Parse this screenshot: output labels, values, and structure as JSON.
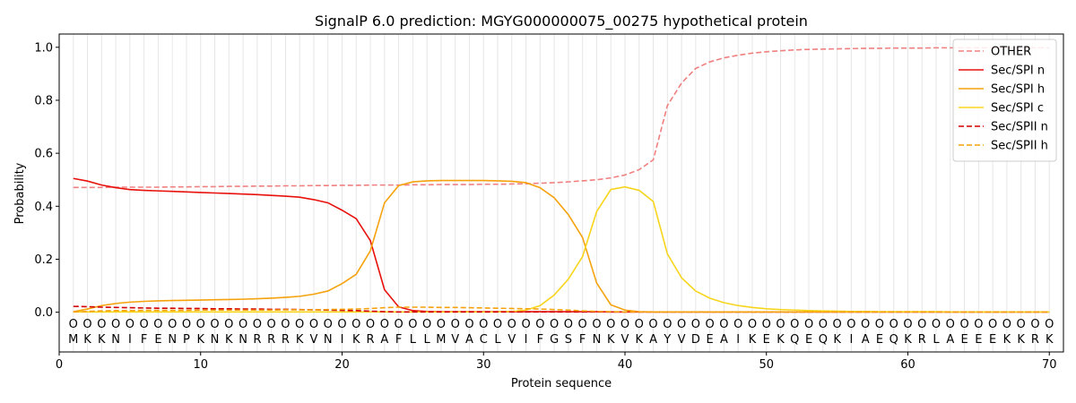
{
  "chart_data": {
    "type": "line",
    "title": "SignalP 6.0 prediction: MGYG000000075_00275 hypothetical protein",
    "xlabel": "Protein sequence",
    "ylabel": "Probability",
    "xlim": [
      0,
      71
    ],
    "ylim": [
      -0.15,
      1.05
    ],
    "xticks": [
      0,
      10,
      20,
      30,
      40,
      50,
      60,
      70
    ],
    "yticks": [
      0.0,
      0.2,
      0.4,
      0.6,
      0.8,
      1.0
    ],
    "grid": "vertical lines at each residue",
    "legend_position": "top-right",
    "x": [
      1,
      2,
      3,
      4,
      5,
      6,
      7,
      8,
      9,
      10,
      11,
      12,
      13,
      14,
      15,
      16,
      17,
      18,
      19,
      20,
      21,
      22,
      23,
      24,
      25,
      26,
      27,
      28,
      29,
      30,
      31,
      32,
      33,
      34,
      35,
      36,
      37,
      38,
      39,
      40,
      41,
      42,
      43,
      44,
      45,
      46,
      47,
      48,
      49,
      50,
      51,
      52,
      53,
      54,
      55,
      56,
      57,
      58,
      59,
      60,
      61,
      62,
      63,
      64,
      65,
      66,
      67,
      68,
      69,
      70
    ],
    "sequence": [
      "M",
      "K",
      "K",
      "N",
      "I",
      "F",
      "E",
      "N",
      "P",
      "K",
      "N",
      "K",
      "N",
      "R",
      "R",
      "R",
      "K",
      "V",
      "N",
      "I",
      "K",
      "R",
      "A",
      "F",
      "L",
      "L",
      "M",
      "V",
      "A",
      "C",
      "L",
      "V",
      "I",
      "F",
      "G",
      "S",
      "F",
      "N",
      "K",
      "V",
      "K",
      "A",
      "Y",
      "V",
      "D",
      "E",
      "A",
      "I",
      "K",
      "E",
      "K",
      "Q",
      "E",
      "Q",
      "K",
      "I",
      "A",
      "E",
      "Q",
      "K",
      "R",
      "L",
      "A",
      "E",
      "E",
      "E",
      "K",
      "K",
      "R",
      "K"
    ],
    "labels": [
      "O",
      "O",
      "O",
      "O",
      "O",
      "O",
      "O",
      "O",
      "O",
      "O",
      "O",
      "O",
      "O",
      "O",
      "O",
      "O",
      "O",
      "O",
      "O",
      "O",
      "O",
      "O",
      "O",
      "O",
      "O",
      "O",
      "O",
      "O",
      "O",
      "O",
      "O",
      "O",
      "O",
      "O",
      "O",
      "O",
      "O",
      "O",
      "O",
      "O",
      "O",
      "O",
      "O",
      "O",
      "O",
      "O",
      "O",
      "O",
      "O",
      "O",
      "O",
      "O",
      "O",
      "O",
      "O",
      "O",
      "O",
      "O",
      "O",
      "O",
      "O",
      "O",
      "O",
      "O",
      "O",
      "O",
      "O",
      "O",
      "O",
      "O"
    ],
    "series": [
      {
        "name": "OTHER",
        "color": "#f08080",
        "dash": "dashed",
        "values": [
          0.471,
          0.471,
          0.471,
          0.472,
          0.472,
          0.472,
          0.472,
          0.473,
          0.473,
          0.474,
          0.474,
          0.475,
          0.475,
          0.476,
          0.476,
          0.477,
          0.477,
          0.478,
          0.478,
          0.479,
          0.479,
          0.48,
          0.48,
          0.48,
          0.481,
          0.481,
          0.482,
          0.482,
          0.482,
          0.483,
          0.483,
          0.484,
          0.485,
          0.487,
          0.489,
          0.492,
          0.496,
          0.5,
          0.507,
          0.518,
          0.538,
          0.575,
          0.78,
          0.865,
          0.92,
          0.945,
          0.96,
          0.97,
          0.978,
          0.983,
          0.987,
          0.99,
          0.992,
          0.993,
          0.994,
          0.995,
          0.996,
          0.996,
          0.997,
          0.997,
          0.997,
          0.998,
          0.998,
          0.998,
          0.998,
          0.998,
          0.998,
          0.998,
          0.998,
          0.998
        ]
      },
      {
        "name": "Sec/SPI n",
        "color": "#e8110c",
        "dash": "solid",
        "values": [
          0.505,
          0.495,
          0.48,
          0.47,
          0.463,
          0.46,
          0.458,
          0.456,
          0.454,
          0.452,
          0.45,
          0.448,
          0.446,
          0.444,
          0.441,
          0.438,
          0.434,
          0.425,
          0.413,
          0.385,
          0.353,
          0.27,
          0.085,
          0.02,
          0.006,
          0.003,
          0.002,
          0.002,
          0.002,
          0.002,
          0.002,
          0.002,
          0.002,
          0.002,
          0.002,
          0.002,
          0.002,
          0.002,
          0.001,
          0.001,
          0.001,
          0.001,
          0.001,
          0.001,
          0.001,
          0.001,
          0.001,
          0.001,
          0.001,
          0.001,
          0.001,
          0.001,
          0.001,
          0.001,
          0.001,
          0.001,
          0.001,
          0.001,
          0.001,
          0.001,
          0.001,
          0.001,
          0.001,
          0.001,
          0.001,
          0.001,
          0.001,
          0.001,
          0.001,
          0.001
        ]
      },
      {
        "name": "Sec/SPI h",
        "color": "#f5a20d",
        "dash": "solid",
        "values": [
          0.002,
          0.012,
          0.025,
          0.033,
          0.038,
          0.041,
          0.043,
          0.044,
          0.045,
          0.046,
          0.047,
          0.048,
          0.049,
          0.051,
          0.053,
          0.056,
          0.06,
          0.068,
          0.08,
          0.108,
          0.143,
          0.232,
          0.413,
          0.478,
          0.492,
          0.496,
          0.497,
          0.497,
          0.497,
          0.497,
          0.496,
          0.494,
          0.489,
          0.47,
          0.432,
          0.368,
          0.282,
          0.11,
          0.028,
          0.008,
          0.002,
          0.001,
          0.001,
          0.001,
          0.001,
          0.001,
          0.001,
          0.001,
          0.001,
          0.001,
          0.001,
          0.001,
          0.001,
          0.001,
          0.001,
          0.001,
          0.001,
          0.001,
          0.001,
          0.001,
          0.001,
          0.001,
          0.001,
          0.001,
          0.001,
          0.001,
          0.001,
          0.001,
          0.001,
          0.001
        ]
      },
      {
        "name": "Sec/SPI c",
        "color": "#f7d51c",
        "dash": "solid",
        "values": [
          0.001,
          0.001,
          0.001,
          0.001,
          0.001,
          0.001,
          0.001,
          0.001,
          0.001,
          0.001,
          0.001,
          0.001,
          0.001,
          0.001,
          0.001,
          0.001,
          0.001,
          0.001,
          0.001,
          0.001,
          0.001,
          0.001,
          0.001,
          0.001,
          0.001,
          0.001,
          0.001,
          0.001,
          0.001,
          0.001,
          0.001,
          0.003,
          0.008,
          0.025,
          0.065,
          0.125,
          0.21,
          0.38,
          0.463,
          0.473,
          0.46,
          0.418,
          0.22,
          0.13,
          0.08,
          0.053,
          0.036,
          0.025,
          0.018,
          0.013,
          0.01,
          0.008,
          0.006,
          0.005,
          0.004,
          0.003,
          0.003,
          0.002,
          0.002,
          0.002,
          0.002,
          0.002,
          0.001,
          0.001,
          0.001,
          0.001,
          0.001,
          0.001,
          0.001,
          0.001
        ]
      },
      {
        "name": "Sec/SPII n",
        "color": "#d40000",
        "dash": "dashed",
        "values": [
          0.022,
          0.021,
          0.019,
          0.018,
          0.017,
          0.016,
          0.015,
          0.015,
          0.014,
          0.014,
          0.013,
          0.013,
          0.012,
          0.012,
          0.011,
          0.011,
          0.01,
          0.009,
          0.008,
          0.007,
          0.006,
          0.004,
          0.002,
          0.001,
          0.001,
          0.001,
          0.001,
          0.001,
          0.001,
          0.001,
          0.001,
          0.001,
          0.001,
          0.001,
          0.001,
          0.001,
          0.001,
          0.001,
          0.001,
          0.001,
          0.001,
          0.001,
          0.001,
          0.001,
          0.001,
          0.001,
          0.001,
          0.001,
          0.001,
          0.001,
          0.001,
          0.001,
          0.001,
          0.001,
          0.001,
          0.001,
          0.001,
          0.001,
          0.001,
          0.001,
          0.001,
          0.001,
          0.001,
          0.001,
          0.001,
          0.001,
          0.001,
          0.001,
          0.001,
          0.001
        ]
      },
      {
        "name": "Sec/SPII h",
        "color": "#f5a20d",
        "dash": "dashed",
        "values": [
          0.001,
          0.003,
          0.005,
          0.006,
          0.006,
          0.007,
          0.007,
          0.007,
          0.007,
          0.008,
          0.008,
          0.008,
          0.008,
          0.008,
          0.008,
          0.009,
          0.009,
          0.009,
          0.01,
          0.011,
          0.012,
          0.014,
          0.017,
          0.019,
          0.019,
          0.019,
          0.018,
          0.018,
          0.017,
          0.016,
          0.015,
          0.014,
          0.013,
          0.012,
          0.01,
          0.008,
          0.005,
          0.003,
          0.002,
          0.001,
          0.001,
          0.001,
          0.001,
          0.001,
          0.001,
          0.001,
          0.001,
          0.001,
          0.001,
          0.001,
          0.001,
          0.001,
          0.001,
          0.001,
          0.001,
          0.001,
          0.001,
          0.001,
          0.001,
          0.001,
          0.001,
          0.001,
          0.001,
          0.001,
          0.001,
          0.001,
          0.001,
          0.001,
          0.001,
          0.001
        ]
      }
    ]
  }
}
